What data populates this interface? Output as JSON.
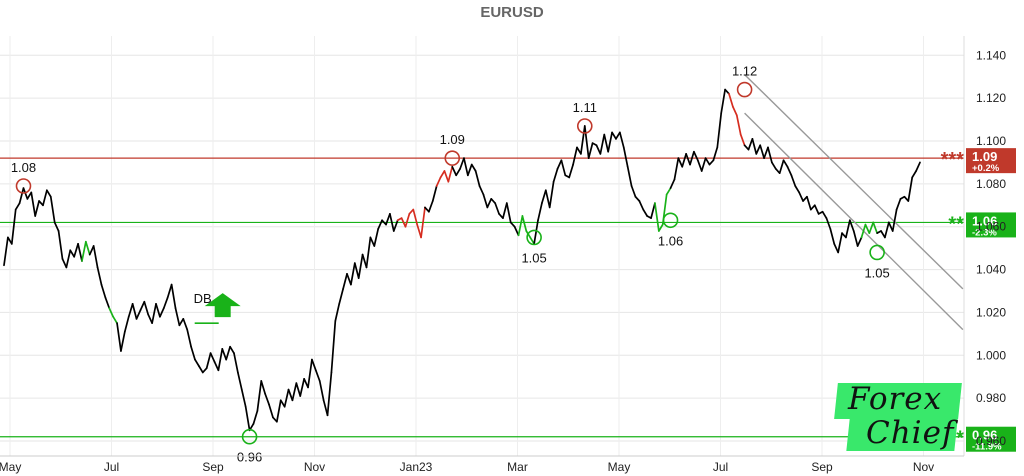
{
  "chart_data": {
    "type": "line",
    "title": "EURUSD",
    "x_ticks": [
      "May",
      "Jul",
      "Sep",
      "Nov",
      "Jan23",
      "Mar",
      "May",
      "Jul",
      "Sep",
      "Nov"
    ],
    "y_ticks": [
      "1.140",
      "1.120",
      "1.100",
      "1.080",
      "1.060",
      "1.040",
      "1.020",
      "1.000",
      "0.980",
      "0.960"
    ],
    "ylim": [
      0.953,
      1.149
    ],
    "grid": true,
    "series": [
      {
        "values": [
          1.042,
          1.055,
          1.052,
          1.068,
          1.071,
          1.078,
          1.073,
          1.076,
          1.065,
          1.072,
          1.07,
          1.077,
          1.074,
          1.062,
          1.058,
          1.045,
          1.041,
          1.049,
          1.046,
          1.052,
          1.044,
          1.053,
          1.047,
          1.051,
          1.041,
          1.033,
          1.027,
          1.022,
          1.018,
          1.015,
          1.002,
          1.011,
          1.018,
          1.024,
          1.017,
          1.021,
          1.025,
          1.019,
          1.015,
          1.024,
          1.018,
          1.022,
          1.027,
          1.033,
          1.022,
          1.014,
          1.017,
          1.012,
          1.004,
          0.998,
          0.995,
          0.992,
          0.994,
          1.001,
          0.997,
          0.993,
          1.003,
          0.998,
          1.004,
          1.001,
          0.992,
          0.984,
          0.976,
          0.965,
          0.968,
          0.974,
          0.988,
          0.982,
          0.977,
          0.971,
          0.969,
          0.979,
          0.976,
          0.984,
          0.979,
          0.987,
          0.981,
          0.989,
          0.985,
          0.998,
          0.993,
          0.988,
          0.979,
          0.972,
          0.992,
          1.016,
          1.024,
          1.031,
          1.038,
          1.033,
          1.043,
          1.036,
          1.047,
          1.041,
          1.055,
          1.051,
          1.059,
          1.063,
          1.061,
          1.066,
          1.058,
          1.063,
          1.064,
          1.06,
          1.066,
          1.068,
          1.061,
          1.055,
          1.069,
          1.067,
          1.072,
          1.079,
          1.083,
          1.086,
          1.081,
          1.088,
          1.084,
          1.087,
          1.092,
          1.084,
          1.089,
          1.086,
          1.079,
          1.075,
          1.069,
          1.073,
          1.071,
          1.066,
          1.064,
          1.071,
          1.062,
          1.06,
          1.056,
          1.065,
          1.058,
          1.055,
          1.052,
          1.063,
          1.071,
          1.077,
          1.069,
          1.081,
          1.087,
          1.091,
          1.084,
          1.083,
          1.089,
          1.097,
          1.094,
          1.107,
          1.092,
          1.099,
          1.098,
          1.094,
          1.103,
          1.095,
          1.104,
          1.101,
          1.104,
          1.097,
          1.088,
          1.079,
          1.074,
          1.072,
          1.068,
          1.065,
          1.064,
          1.071,
          1.058,
          1.061,
          1.075,
          1.078,
          1.082,
          1.092,
          1.088,
          1.094,
          1.089,
          1.095,
          1.091,
          1.086,
          1.092,
          1.089,
          1.091,
          1.097,
          1.113,
          1.124,
          1.122,
          1.116,
          1.112,
          1.103,
          1.098,
          1.096,
          1.101,
          1.094,
          1.098,
          1.092,
          1.097,
          1.09,
          1.087,
          1.085,
          1.091,
          1.088,
          1.084,
          1.079,
          1.076,
          1.072,
          1.074,
          1.068,
          1.07,
          1.066,
          1.067,
          1.064,
          1.059,
          1.052,
          1.048,
          1.057,
          1.055,
          1.063,
          1.058,
          1.051,
          1.055,
          1.061,
          1.057,
          1.062,
          1.057,
          1.058,
          1.055,
          1.062,
          1.058,
          1.068,
          1.073,
          1.074,
          1.072,
          1.083,
          1.086,
          1.09
        ]
      }
    ],
    "horizontal_levels": [
      {
        "value": 1.092,
        "color": "#c0392b",
        "stars": "***",
        "label": "1.09",
        "change": "+0.2%"
      },
      {
        "value": 1.062,
        "color": "#19b219",
        "stars": "**",
        "label": "1.06",
        "change": "-2.3%"
      },
      {
        "value": 0.962,
        "color": "#19b219",
        "stars": "*",
        "label": "0.96",
        "change": "-11.9%"
      }
    ],
    "annotations": [
      {
        "text": "1.08",
        "x_index": 5,
        "value": 1.079,
        "kind": "peak"
      },
      {
        "text": "0.96",
        "x_index": 63,
        "value": 0.962,
        "kind": "trough"
      },
      {
        "text": "1.09",
        "x_index": 115,
        "value": 1.092,
        "kind": "peak"
      },
      {
        "text": "1.05",
        "x_index": 136,
        "value": 1.055,
        "kind": "trough"
      },
      {
        "text": "1.11",
        "x_index": 149,
        "value": 1.107,
        "kind": "peak"
      },
      {
        "text": "1.06",
        "x_index": 171,
        "value": 1.063,
        "kind": "trough"
      },
      {
        "text": "1.12",
        "x_index": 190,
        "value": 1.124,
        "kind": "peak"
      },
      {
        "text": "1.05",
        "x_index": 224,
        "value": 1.048,
        "kind": "trough"
      }
    ],
    "pattern": {
      "text": "DB",
      "x_index": 52,
      "value": 1.015
    },
    "channel": {
      "upper": [
        [
          190,
          1.131
        ],
        [
          246,
          1.031
        ]
      ],
      "lower": [
        [
          190,
          1.113
        ],
        [
          246,
          1.012
        ]
      ]
    },
    "colors": {
      "up": "#d62d20",
      "down": "#19b219",
      "price": "#000000",
      "resistance": "#c0392b",
      "support": "#19b219"
    }
  },
  "logo": {
    "line1": "Forex",
    "line2": "Chief"
  }
}
